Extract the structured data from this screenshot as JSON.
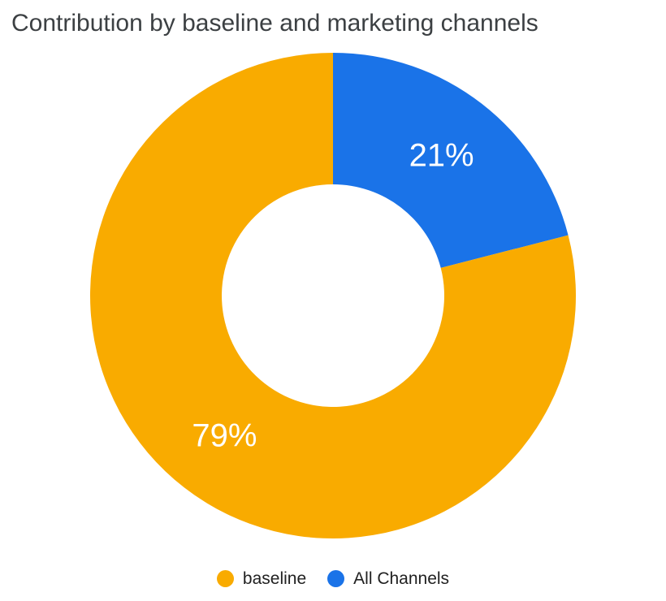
{
  "title": "Contribution by baseline and marketing channels",
  "colors": {
    "background": "#FFFFFF",
    "title_text": "#3C4043",
    "slice_label_text": "#FFFFFF",
    "legend_text": "#212121",
    "baseline_orange": "#F9AB00",
    "all_channels_blue": "#1A73E8"
  },
  "chart_data": {
    "type": "pie",
    "title": "Contribution by baseline and marketing channels",
    "donut": true,
    "hole_ratio": 0.458,
    "start_angle_deg": 0,
    "direction": "clockwise",
    "slices": [
      {
        "label": "All Channels",
        "value": 21,
        "display": "21%",
        "color": "#1A73E8"
      },
      {
        "label": "baseline",
        "value": 79,
        "display": "79%",
        "color": "#F9AB00"
      }
    ],
    "legend": {
      "position": "bottom",
      "items": [
        {
          "label": "baseline",
          "color": "#F9AB00"
        },
        {
          "label": "All Channels",
          "color": "#1A73E8"
        }
      ]
    }
  }
}
